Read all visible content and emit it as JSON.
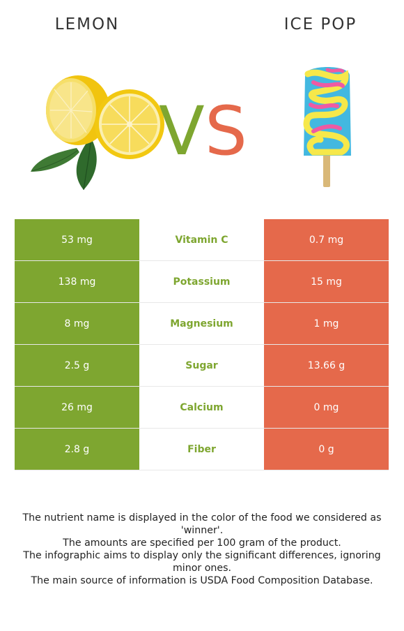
{
  "left_food": {
    "name": "LEMON",
    "color": "#7ea630"
  },
  "right_food": {
    "name": "ICE POP",
    "color": "#e5694b"
  },
  "vs": {
    "v": "V",
    "s": "S"
  },
  "rows": [
    {
      "left": "53 mg",
      "nutrient": "Vitamin C",
      "right": "0.7 mg"
    },
    {
      "left": "138 mg",
      "nutrient": "Potassium",
      "right": "15 mg"
    },
    {
      "left": "8 mg",
      "nutrient": "Magnesium",
      "right": "1 mg"
    },
    {
      "left": "2.5 g",
      "nutrient": "Sugar",
      "right": "13.66 g"
    },
    {
      "left": "26 mg",
      "nutrient": "Calcium",
      "right": "0 mg"
    },
    {
      "left": "2.8 g",
      "nutrient": "Fiber",
      "right": "0 g"
    }
  ],
  "footer": [
    "The nutrient name is displayed in the color of the food we considered as 'winner'.",
    "The amounts are specified per 100 gram of the product.",
    "The infographic aims to display only the significant differences, ignoring minor ones.",
    "The main source of information is USDA Food Composition Database."
  ]
}
